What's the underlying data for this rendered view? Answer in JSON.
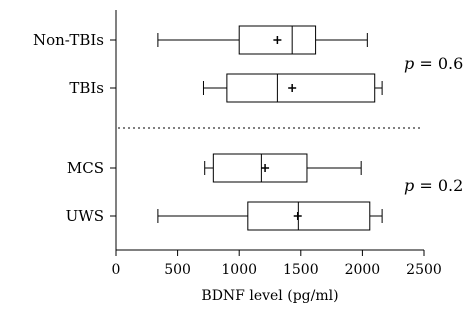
{
  "chart_data": {
    "type": "boxplot",
    "orientation": "horizontal",
    "xlabel": "BDNF level (pg/ml)",
    "xlim": [
      0,
      2500
    ],
    "x_ticks": [
      "0",
      "500",
      "1000",
      "1500",
      "2000",
      "2500"
    ],
    "groups": [
      {
        "label": "Non-TBIs",
        "min": 340,
        "q1": 1000,
        "median": 1430,
        "q3": 1620,
        "max": 2040,
        "mean": 1310
      },
      {
        "label": "TBIs",
        "min": 710,
        "q1": 900,
        "median": 1310,
        "q3": 2100,
        "max": 2160,
        "mean": 1430
      },
      {
        "label": "MCS",
        "min": 720,
        "q1": 790,
        "median": 1180,
        "q3": 1550,
        "max": 1990,
        "mean": 1210
      },
      {
        "label": "UWS",
        "min": 340,
        "q1": 1070,
        "median": 1480,
        "q3": 2060,
        "max": 2160,
        "mean": 1475
      }
    ],
    "annotations": [
      {
        "p_symbol": "p",
        "text": " = 0.6",
        "applies_to": [
          "Non-TBIs",
          "TBIs"
        ]
      },
      {
        "p_symbol": "p",
        "text": " = 0.2",
        "applies_to": [
          "MCS",
          "UWS"
        ]
      }
    ],
    "divider": "dotted line between TBIs and MCS groups"
  }
}
